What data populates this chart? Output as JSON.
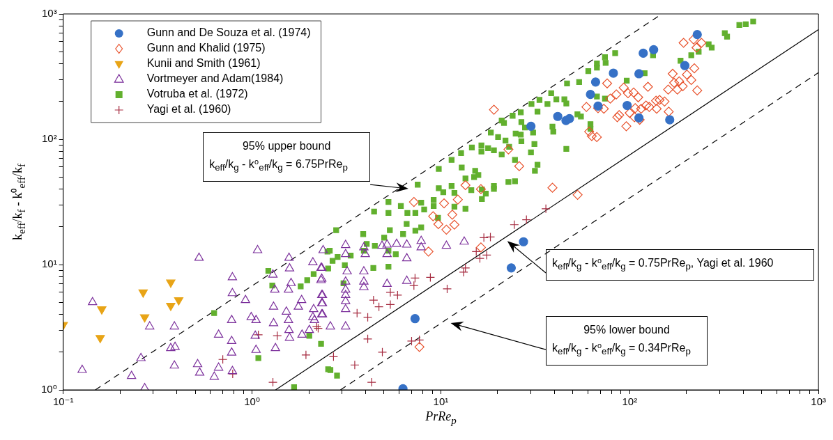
{
  "chart_data": {
    "type": "scatter",
    "xlabel": "PrRe$_{p}$",
    "ylabel": "k$_{eff}$/k$_{f}$ - k⁰$_{eff}$/k$_{f}$",
    "log": "xy",
    "grid": false,
    "legend": "top left",
    "xlim": [
      0.1,
      1000
    ],
    "ylim": [
      1,
      1000
    ],
    "xticks": [
      {
        "value": 0.1,
        "label": "10⁻¹"
      },
      {
        "value": 0.2,
        "label": null
      },
      {
        "value": 0.3,
        "label": null
      },
      {
        "value": 0.4,
        "label": null
      },
      {
        "value": 0.5,
        "label": null
      },
      {
        "value": 0.6,
        "label": null
      },
      {
        "value": 0.7,
        "label": null
      },
      {
        "value": 0.8,
        "label": null
      },
      {
        "value": 0.9,
        "label": null
      },
      {
        "value": 1,
        "label": "10⁰"
      },
      {
        "value": 2,
        "label": null
      },
      {
        "value": 3,
        "label": null
      },
      {
        "value": 4,
        "label": null
      },
      {
        "value": 5,
        "label": null
      },
      {
        "value": 6,
        "label": null
      },
      {
        "value": 7,
        "label": null
      },
      {
        "value": 8,
        "label": null
      },
      {
        "value": 9,
        "label": null
      },
      {
        "value": 10,
        "label": "10¹"
      },
      {
        "value": 20,
        "label": null
      },
      {
        "value": 30,
        "label": null
      },
      {
        "value": 40,
        "label": null
      },
      {
        "value": 50,
        "label": null
      },
      {
        "value": 60,
        "label": null
      },
      {
        "value": 70,
        "label": null
      },
      {
        "value": 80,
        "label": null
      },
      {
        "value": 90,
        "label": null
      },
      {
        "value": 100,
        "label": "10²"
      },
      {
        "value": 200,
        "label": null
      },
      {
        "value": 300,
        "label": null
      },
      {
        "value": 400,
        "label": null
      },
      {
        "value": 500,
        "label": null
      },
      {
        "value": 600,
        "label": null
      },
      {
        "value": 700,
        "label": null
      },
      {
        "value": 800,
        "label": null
      },
      {
        "value": 900,
        "label": null
      },
      {
        "value": 1000,
        "label": "10³"
      }
    ],
    "yticks": [
      {
        "value": 1,
        "label": "10⁰"
      },
      {
        "value": 2,
        "label": null
      },
      {
        "value": 3,
        "label": null
      },
      {
        "value": 4,
        "label": null
      },
      {
        "value": 5,
        "label": null
      },
      {
        "value": 6,
        "label": null
      },
      {
        "value": 7,
        "label": null
      },
      {
        "value": 8,
        "label": null
      },
      {
        "value": 9,
        "label": null
      },
      {
        "value": 10,
        "label": "10¹"
      },
      {
        "value": 20,
        "label": null
      },
      {
        "value": 30,
        "label": null
      },
      {
        "value": 40,
        "label": null
      },
      {
        "value": 50,
        "label": null
      },
      {
        "value": 60,
        "label": null
      },
      {
        "value": 70,
        "label": null
      },
      {
        "value": 80,
        "label": null
      },
      {
        "value": 90,
        "label": null
      },
      {
        "value": 100,
        "label": "10²"
      },
      {
        "value": 200,
        "label": null
      },
      {
        "value": 300,
        "label": null
      },
      {
        "value": 400,
        "label": null
      },
      {
        "value": 500,
        "label": null
      },
      {
        "value": 600,
        "label": null
      },
      {
        "value": 700,
        "label": null
      },
      {
        "value": 800,
        "label": null
      },
      {
        "value": 900,
        "label": null
      },
      {
        "value": 1000,
        "label": "10³"
      }
    ],
    "annotations": [
      "95% upper bound",
      "k$_{eff}$/k$_{g}$ - k⁰$_{eff}$/k$_{g}$ = 6.75PrRe$_{p}$",
      "k$_{eff}$/k$_{g}$ - k⁰$_{eff}$/k$_{g}$ = 0.75PrRe$_{p}$, Yagi et al. 1960",
      "95% lower bound",
      "k$_{eff}$/k$_{g}$ - k⁰$_{eff}$/k$_{g}$ = 0.34PrRe$_{p}$"
    ],
    "series": [
      {
        "name": "Gunn and De Souza et al. (1974)",
        "color": "#3671c6",
        "marker": "circle",
        "x": [
          6.3,
          7.3,
          23.6,
          27.4,
          30,
          41.6,
          46,
          48,
          62,
          66,
          68,
          82,
          97,
          112,
          112,
          118,
          134,
          163,
          196,
          228
        ],
        "values": [
          1.02,
          3.7,
          9.4,
          15.2,
          127,
          152,
          141,
          146,
          228,
          286,
          184,
          337,
          186,
          148,
          333,
          486,
          518,
          143,
          387,
          684
        ]
      },
      {
        "name": "Gunn and Khalid (1975)",
        "color": "#e8502a",
        "marker": "diamond",
        "x": [
          193,
          218,
          240,
          226,
          169,
          220,
          201,
          212,
          183,
          172,
          191,
          160,
          179,
          228,
          125,
          93,
          76,
          105,
          98,
          111,
          85,
          144,
          153,
          138,
          127,
          139,
          122,
          115,
          161,
          107,
          100,
          88,
          86,
          106,
          113,
          96,
          59,
          68,
          73,
          79,
          61,
          67,
          63,
          39,
          53,
          19.1,
          22.8,
          26,
          13.5,
          16.3,
          7.2,
          10.4,
          12.3,
          9.1,
          9.7,
          11.5,
          11.8,
          10.7,
          8.6,
          16.3,
          7.7
        ],
        "values": [
          588,
          626,
          588,
          538,
          333,
          368,
          328,
          297,
          290,
          282,
          265,
          249,
          249,
          245,
          262,
          258,
          279,
          236,
          233,
          216,
          228,
          206,
          200,
          203,
          181,
          175,
          186,
          175,
          166,
          177,
          162,
          156,
          150,
          150,
          143,
          127,
          181,
          177,
          175,
          211,
          115,
          104,
          106,
          41,
          36,
          172,
          83,
          61,
          43,
          40,
          31.6,
          30.8,
          33,
          24.3,
          21,
          25,
          20.8,
          19,
          12.7,
          13.7,
          2.2
        ]
      },
      {
        "name": "Kunii and Smith (1961)",
        "color": "#e8a416",
        "marker": "triangle-down",
        "x": [
          0.1,
          0.16,
          0.157,
          0.265,
          0.27,
          0.371,
          0.371,
          0.409
        ],
        "values": [
          3.3,
          4.4,
          2.6,
          6.0,
          3.8,
          7.2,
          4.7,
          5.2
        ]
      },
      {
        "name": "Vortmeyer and Adam(1984)",
        "color": "#7b2f9b",
        "marker": "triangle",
        "x": [
          0.143,
          0.126,
          0.23,
          0.258,
          0.287,
          0.27,
          0.388,
          0.371,
          0.391,
          0.388,
          0.524,
          0.515,
          0.528,
          0.631,
          0.665,
          0.665,
          0.787,
          0.787,
          0.923,
          0.78,
          0.78,
          0.78,
          0.787,
          1.07,
          0.99,
          1.05,
          1.04,
          1.05,
          1.29,
          1.32,
          1.3,
          1.3,
          1.33,
          1.57,
          1.58,
          1.61,
          1.56,
          1.83,
          1.76,
          1.52,
          1.56,
          1.57,
          1.58,
          1.84,
          2.1,
          2.32,
          2.32,
          2.36,
          2.36,
          2.12,
          2.1,
          2.36,
          2.01,
          2.38,
          3.13,
          3.13,
          3.91,
          4.88,
          5.19,
          5.83,
          6.6,
          7.87,
          7.87,
          10.7,
          13.3,
          3.98,
          5.19,
          6.6,
          2.34,
          3.19,
          3.91,
          2.34,
          3.13,
          3.91,
          5.19,
          6.6,
          3.91,
          3.13,
          2.34,
          3.13,
          3.13,
          2.34,
          3.13,
          2.34,
          2.6,
          3.13,
          2.14
        ],
        "values": [
          5.0,
          1.44,
          1.29,
          1.79,
          3.2,
          1.03,
          3.2,
          2.15,
          2.2,
          1.56,
          11.3,
          1.6,
          1.37,
          1.27,
          1.5,
          2.75,
          7.9,
          5.9,
          5.2,
          3.6,
          2.45,
          1.98,
          1.41,
          13.0,
          3.8,
          3.6,
          2.7,
          2.08,
          8.3,
          6.3,
          4.6,
          3.4,
          2.15,
          11.3,
          9.3,
          7.1,
          6.3,
          5.2,
          4.6,
          4.2,
          3.6,
          3.0,
          2.6,
          2.75,
          10.4,
          9.4,
          7.5,
          5.7,
          4.9,
          4.4,
          3.8,
          4.0,
          3.0,
          13.0,
          14.3,
          12.1,
          13.7,
          14.1,
          14.4,
          14.6,
          14.4,
          15.4,
          13.7,
          14.1,
          15.2,
          12.1,
          12.1,
          11.2,
          9.4,
          8.8,
          8.8,
          7.7,
          7.3,
          7.3,
          7.0,
          7.4,
          6.6,
          6.3,
          5.7,
          5.7,
          5.1,
          4.9,
          4.4,
          4.0,
          3.2,
          3.2,
          3.6
        ]
      },
      {
        "name": "Votruba et al. (1972)",
        "color": "#62b02e",
        "marker": "square",
        "x": [
          0.63,
          1.08,
          1.22,
          1.28,
          1.67,
          1.81,
          1.96,
          2.01,
          2.12,
          2.32,
          2.51,
          2.53,
          2.53,
          2.58,
          2.67,
          2.79,
          2.6,
          2.82,
          2.84,
          3.05,
          3.1,
          3.33,
          3.88,
          3.91,
          4.05,
          4.39,
          4.47,
          5.01,
          5.28,
          5.28,
          5.28,
          5.37,
          5.77,
          6.31,
          6.59,
          6.65,
          7.33,
          7.33,
          7.87,
          8.16,
          9.66,
          13.5,
          4.43,
          5.28,
          6.14,
          7.54,
          7.87,
          9.16,
          9.16,
          9.75,
          9.75,
          10.3,
          11.4,
          11.4,
          11.8,
          11.8,
          12.9,
          12.8,
          13.5,
          14.5,
          14.6,
          15.0,
          15.2,
          15.8,
          16.4,
          16.4,
          16.5,
          16.5,
          17.3,
          17.8,
          19.1,
          19.1,
          19.1,
          18.4,
          20.1,
          21.0,
          21.6,
          21.0,
          22.0,
          22.8,
          23.0,
          24.0,
          24.7,
          24.7,
          24.9,
          26.5,
          26.7,
          26.5,
          26.7,
          27.9,
          30.0,
          30.2,
          30.8,
          31.3,
          31.5,
          32.5,
          32.5,
          33.3,
          36.7,
          38.4,
          40.9,
          45.1,
          46.2,
          46.6,
          39.0,
          39.4,
          46.2,
          54.0,
          60.4,
          67.1,
          67.1,
          74.0,
          74.6,
          83.8,
          67.1,
          74.0,
          52.9,
          55.2,
          62.0,
          62.0,
          96.5,
          120,
          133,
          186,
          212,
          232,
          262,
          272,
          319,
          328,
          381,
          412,
          451
        ],
        "values": [
          4.1,
          1.79,
          8.9,
          6.8,
          1.05,
          6.7,
          7.5,
          2.7,
          8.4,
          2.33,
          12.7,
          9.3,
          1.46,
          12.9,
          10.7,
          18.8,
          1.44,
          1.3,
          11.5,
          7.1,
          9.9,
          11.8,
          17.5,
          12.9,
          14.6,
          9.4,
          14.1,
          16.4,
          25.8,
          12.9,
          9.6,
          18.8,
          12.1,
          17.5,
          21.1,
          25.8,
          25.8,
          18.6,
          19.8,
          27.5,
          23.6,
          27.9,
          26.5,
          31.6,
          29.3,
          43.4,
          31.2,
          32.8,
          29.3,
          58.0,
          40.7,
          37.8,
          68.4,
          42.3,
          37.3,
          29.0,
          59.5,
          77.6,
          48.6,
          39.2,
          85.9,
          49.9,
          55.9,
          51.8,
          89.3,
          79.7,
          39.7,
          33.3,
          36.8,
          84.8,
          81.7,
          42.3,
          40.2,
          113,
          104,
          141,
          135,
          75.7,
          97.5,
          45.6,
          87.1,
          154,
          46.2,
          68.4,
          111,
          164,
          137,
          109,
          96.3,
          124,
          78.6,
          191,
          113,
          91.6,
          55.9,
          62.6,
          166,
          206,
          191,
          233,
          208,
          208,
          193,
          279,
          126,
          115,
          83.7,
          286,
          350,
          402,
          373,
          451,
          407,
          486,
          219,
          211,
          158,
          152,
          132,
          121,
          293,
          337,
          468,
          423,
          468,
          499,
          573,
          538,
          702,
          659,
          817,
          827,
          871
        ]
      },
      {
        "name": "Yagi et al. (1960)",
        "color": "#a52a3f",
        "marker": "cross",
        "x": [
          28.4,
          24.5,
          36,
          16.9,
          18.3,
          15.4,
          17.5,
          16.1,
          13.5,
          13.2,
          8.8,
          7.3,
          7.2,
          10.8,
          5.4,
          5.9,
          4.4,
          4.7,
          5.4,
          3.6,
          4.1,
          2.2,
          4.1,
          7.0,
          7.7,
          4.9,
          2.7,
          3.5,
          4.3,
          1.08,
          1.36,
          2.24,
          1.93,
          0.7,
          0.79,
          1.29
        ],
        "values": [
          22.8,
          20.8,
          27.9,
          16.4,
          16.6,
          12.7,
          11.9,
          11.2,
          9.4,
          8.7,
          7.9,
          7.8,
          6.8,
          6.4,
          6.0,
          5.7,
          5.2,
          4.6,
          4.8,
          4.1,
          3.8,
          3.2,
          2.55,
          2.45,
          2.5,
          2.0,
          1.84,
          1.58,
          1.15,
          2.75,
          2.7,
          3.1,
          1.9,
          1.75,
          1.34,
          1.15
        ]
      },
      {
        "type": "line",
        "color": "#000000",
        "line_style": "dashed",
        "marker": "none",
        "x": [
          0.148,
          148
        ],
        "values": [
          1,
          1000
        ]
      },
      {
        "type": "line",
        "color": "#000000",
        "line_style": "solid",
        "marker": "none",
        "x": [
          1.333,
          1000
        ],
        "values": [
          1,
          750
        ]
      },
      {
        "type": "line",
        "color": "#000000",
        "line_style": "dashed",
        "marker": "none",
        "x": [
          2.94,
          1000
        ],
        "values": [
          1,
          340
        ]
      }
    ]
  }
}
